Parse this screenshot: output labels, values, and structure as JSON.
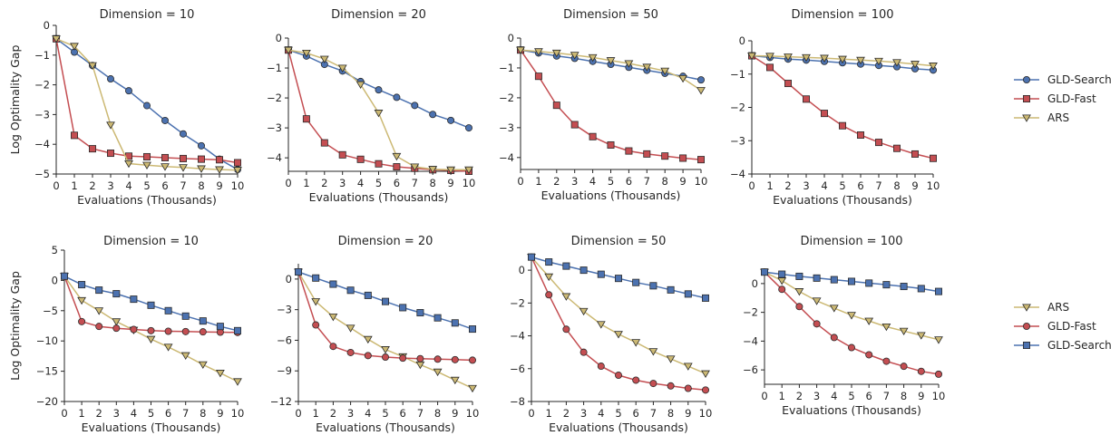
{
  "colors": {
    "GLD-Search": "#4c72b0",
    "GLD-Fast": "#c44e52",
    "ARS": "#ccb974"
  },
  "legends": [
    {
      "entries": [
        {
          "name": "GLD-Search",
          "marker": "circle"
        },
        {
          "name": "GLD-Fast",
          "marker": "square"
        },
        {
          "name": "ARS",
          "marker": "triangle-down"
        }
      ]
    },
    {
      "entries": [
        {
          "name": "ARS",
          "marker": "triangle-down"
        },
        {
          "name": "GLD-Fast",
          "marker": "circle"
        },
        {
          "name": "GLD-Search",
          "marker": "square"
        }
      ]
    }
  ],
  "chart_data": [
    {
      "type": "line",
      "title": "Dimension = 10",
      "xlabel": "Evaluations (Thousands)",
      "ylabel": "Log Optimality Gap",
      "x": [
        0,
        1,
        2,
        3,
        4,
        5,
        6,
        7,
        8,
        9,
        10
      ],
      "xticks": [
        0,
        1,
        2,
        3,
        4,
        5,
        6,
        7,
        8,
        9,
        10
      ],
      "ylim": [
        -5,
        0
      ],
      "yticks": [
        0,
        -1,
        -2,
        -3,
        -4,
        -5
      ],
      "series": [
        {
          "name": "GLD-Search",
          "marker": "circle",
          "values": [
            -0.45,
            -0.9,
            -1.35,
            -1.8,
            -2.2,
            -2.7,
            -3.2,
            -3.65,
            -4.05,
            -4.5,
            -4.85
          ]
        },
        {
          "name": "GLD-Fast",
          "marker": "square",
          "values": [
            -0.45,
            -3.7,
            -4.15,
            -4.3,
            -4.4,
            -4.42,
            -4.45,
            -4.48,
            -4.5,
            -4.52,
            -4.62
          ]
        },
        {
          "name": "ARS",
          "marker": "triangle-down",
          "values": [
            -0.45,
            -0.7,
            -1.35,
            -3.35,
            -4.65,
            -4.7,
            -4.75,
            -4.78,
            -4.82,
            -4.85,
            -4.87
          ]
        }
      ]
    },
    {
      "type": "line",
      "title": "Dimension = 20",
      "xlabel": "Evaluations (Thousands)",
      "ylabel": "",
      "x": [
        0,
        1,
        2,
        3,
        4,
        5,
        6,
        7,
        8,
        9,
        10
      ],
      "xticks": [
        0,
        1,
        2,
        3,
        4,
        5,
        6,
        7,
        8,
        9,
        10
      ],
      "ylim": [
        -4.45,
        0
      ],
      "yticks": [
        0,
        -1,
        -2,
        -3,
        -4
      ],
      "series": [
        {
          "name": "GLD-Search",
          "marker": "circle",
          "values": [
            -0.4,
            -0.6,
            -0.88,
            -1.1,
            -1.45,
            -1.73,
            -1.98,
            -2.25,
            -2.55,
            -2.75,
            -3.0
          ]
        },
        {
          "name": "GLD-Fast",
          "marker": "square",
          "values": [
            -0.4,
            -2.7,
            -3.5,
            -3.9,
            -4.05,
            -4.2,
            -4.3,
            -4.35,
            -4.4,
            -4.42,
            -4.45
          ]
        },
        {
          "name": "ARS",
          "marker": "triangle-down",
          "values": [
            -0.4,
            -0.5,
            -0.7,
            -1.0,
            -1.55,
            -2.5,
            -3.95,
            -4.3,
            -4.38,
            -4.4,
            -4.4
          ]
        }
      ]
    },
    {
      "type": "line",
      "title": "Dimension = 50",
      "xlabel": "Evaluations (Thousands)",
      "ylabel": "",
      "x": [
        0,
        1,
        2,
        3,
        4,
        5,
        6,
        7,
        8,
        9,
        10
      ],
      "xticks": [
        0,
        1,
        2,
        3,
        4,
        5,
        6,
        7,
        8,
        9,
        10
      ],
      "ylim": [
        -4.4,
        0
      ],
      "yticks": [
        0,
        -1,
        -2,
        -3,
        -4
      ],
      "series": [
        {
          "name": "GLD-Search",
          "marker": "circle",
          "values": [
            -0.4,
            -0.5,
            -0.6,
            -0.68,
            -0.78,
            -0.88,
            -0.98,
            -1.08,
            -1.18,
            -1.28,
            -1.4
          ]
        },
        {
          "name": "GLD-Fast",
          "marker": "square",
          "values": [
            -0.4,
            -1.28,
            -2.25,
            -2.9,
            -3.3,
            -3.58,
            -3.78,
            -3.88,
            -3.95,
            -4.02,
            -4.07
          ]
        },
        {
          "name": "ARS",
          "marker": "triangle-down",
          "values": [
            -0.4,
            -0.45,
            -0.5,
            -0.57,
            -0.65,
            -0.75,
            -0.85,
            -0.97,
            -1.1,
            -1.35,
            -1.75
          ]
        }
      ]
    },
    {
      "type": "line",
      "title": "Dimension = 100",
      "xlabel": "Evaluations (Thousands)",
      "ylabel": "",
      "x": [
        0,
        1,
        2,
        3,
        4,
        5,
        6,
        7,
        8,
        9,
        10
      ],
      "xticks": [
        0,
        1,
        2,
        3,
        4,
        5,
        6,
        7,
        8,
        9,
        10
      ],
      "ylim": [
        -4,
        0
      ],
      "yticks": [
        0,
        -1,
        -2,
        -3,
        -4
      ],
      "series": [
        {
          "name": "GLD-Search",
          "marker": "circle",
          "values": [
            -0.45,
            -0.5,
            -0.55,
            -0.58,
            -0.62,
            -0.66,
            -0.7,
            -0.74,
            -0.78,
            -0.84,
            -0.88
          ]
        },
        {
          "name": "GLD-Fast",
          "marker": "square",
          "values": [
            -0.45,
            -0.8,
            -1.28,
            -1.75,
            -2.18,
            -2.55,
            -2.83,
            -3.05,
            -3.23,
            -3.4,
            -3.53
          ]
        },
        {
          "name": "ARS",
          "marker": "triangle-down",
          "values": [
            -0.45,
            -0.46,
            -0.48,
            -0.5,
            -0.52,
            -0.55,
            -0.58,
            -0.61,
            -0.65,
            -0.7,
            -0.75
          ]
        }
      ]
    },
    {
      "type": "line",
      "title": "Dimension = 10",
      "xlabel": "Evaluations (Thousands)",
      "ylabel": "Log Optimality Gap",
      "x": [
        0,
        1,
        2,
        3,
        4,
        5,
        6,
        7,
        8,
        9,
        10
      ],
      "xticks": [
        0,
        1,
        2,
        3,
        4,
        5,
        6,
        7,
        8,
        9,
        10
      ],
      "ylim": [
        -20,
        5
      ],
      "yticks": [
        5,
        0,
        -5,
        -10,
        -15,
        -20
      ],
      "series": [
        {
          "name": "ARS",
          "marker": "triangle-down",
          "values": [
            0.7,
            -3.3,
            -5.0,
            -6.8,
            -8.2,
            -9.7,
            -11.0,
            -12.4,
            -13.9,
            -15.3,
            -16.7
          ]
        },
        {
          "name": "GLD-Fast",
          "marker": "circle",
          "values": [
            0.7,
            -6.8,
            -7.6,
            -7.9,
            -8.1,
            -8.3,
            -8.4,
            -8.45,
            -8.5,
            -8.55,
            -8.6
          ]
        },
        {
          "name": "GLD-Search",
          "marker": "square",
          "values": [
            0.7,
            -0.7,
            -1.6,
            -2.2,
            -3.1,
            -4.1,
            -5.0,
            -5.9,
            -6.7,
            -7.6,
            -8.3
          ]
        }
      ]
    },
    {
      "type": "line",
      "title": "Dimension = 20",
      "xlabel": "Evaluations (Thousands)",
      "ylabel": "",
      "x": [
        0,
        1,
        2,
        3,
        4,
        5,
        6,
        7,
        8,
        9,
        10
      ],
      "xticks": [
        0,
        1,
        2,
        3,
        4,
        5,
        6,
        7,
        8,
        9,
        10
      ],
      "ylim": [
        -12,
        1.5
      ],
      "yticks": [
        0,
        -3,
        -6,
        -9,
        -12
      ],
      "series": [
        {
          "name": "ARS",
          "marker": "triangle-down",
          "values": [
            0.7,
            -2.2,
            -3.7,
            -4.8,
            -5.9,
            -6.9,
            -7.6,
            -8.4,
            -9.1,
            -9.9,
            -10.7
          ]
        },
        {
          "name": "GLD-Fast",
          "marker": "circle",
          "values": [
            0.7,
            -4.5,
            -6.6,
            -7.2,
            -7.5,
            -7.65,
            -7.75,
            -7.8,
            -7.85,
            -7.9,
            -7.95
          ]
        },
        {
          "name": "GLD-Search",
          "marker": "square",
          "values": [
            0.7,
            0.1,
            -0.5,
            -1.1,
            -1.6,
            -2.2,
            -2.8,
            -3.3,
            -3.8,
            -4.3,
            -4.9
          ]
        }
      ]
    },
    {
      "type": "line",
      "title": "Dimension = 50",
      "xlabel": "Evaluations (Thousands)",
      "ylabel": "",
      "x": [
        0,
        1,
        2,
        3,
        4,
        5,
        6,
        7,
        8,
        9,
        10
      ],
      "xticks": [
        0,
        1,
        2,
        3,
        4,
        5,
        6,
        7,
        8,
        9,
        10
      ],
      "ylim": [
        -8,
        1
      ],
      "yticks": [
        0,
        -2,
        -4,
        -6,
        -8
      ],
      "series": [
        {
          "name": "ARS",
          "marker": "triangle-down",
          "values": [
            0.8,
            -0.4,
            -1.6,
            -2.5,
            -3.3,
            -3.9,
            -4.4,
            -4.95,
            -5.4,
            -5.85,
            -6.3
          ]
        },
        {
          "name": "GLD-Fast",
          "marker": "circle",
          "values": [
            0.8,
            -1.5,
            -3.6,
            -5.0,
            -5.85,
            -6.4,
            -6.7,
            -6.9,
            -7.05,
            -7.2,
            -7.3
          ]
        },
        {
          "name": "GLD-Search",
          "marker": "square",
          "values": [
            0.8,
            0.5,
            0.25,
            0.0,
            -0.25,
            -0.5,
            -0.75,
            -0.95,
            -1.2,
            -1.45,
            -1.7
          ]
        }
      ]
    },
    {
      "type": "line",
      "title": "Dimension = 100",
      "xlabel": "Evaluations (Thousands)",
      "ylabel": "",
      "x": [
        0,
        1,
        2,
        3,
        4,
        5,
        6,
        7,
        8,
        9,
        10
      ],
      "xticks": [
        0,
        1,
        2,
        3,
        4,
        5,
        6,
        7,
        8,
        9,
        10
      ],
      "ylim": [
        -7,
        1
      ],
      "yticks": [
        0,
        -2,
        -4,
        -6
      ],
      "series": [
        {
          "name": "ARS",
          "marker": "triangle-down",
          "values": [
            0.8,
            0.2,
            -0.55,
            -1.2,
            -1.7,
            -2.2,
            -2.6,
            -3.0,
            -3.3,
            -3.6,
            -3.9
          ]
        },
        {
          "name": "GLD-Fast",
          "marker": "circle",
          "values": [
            0.8,
            -0.4,
            -1.6,
            -2.8,
            -3.75,
            -4.45,
            -4.95,
            -5.4,
            -5.75,
            -6.1,
            -6.3
          ]
        },
        {
          "name": "GLD-Search",
          "marker": "square",
          "values": [
            0.8,
            0.65,
            0.5,
            0.38,
            0.27,
            0.15,
            0.03,
            -0.08,
            -0.2,
            -0.35,
            -0.55
          ]
        }
      ]
    }
  ]
}
